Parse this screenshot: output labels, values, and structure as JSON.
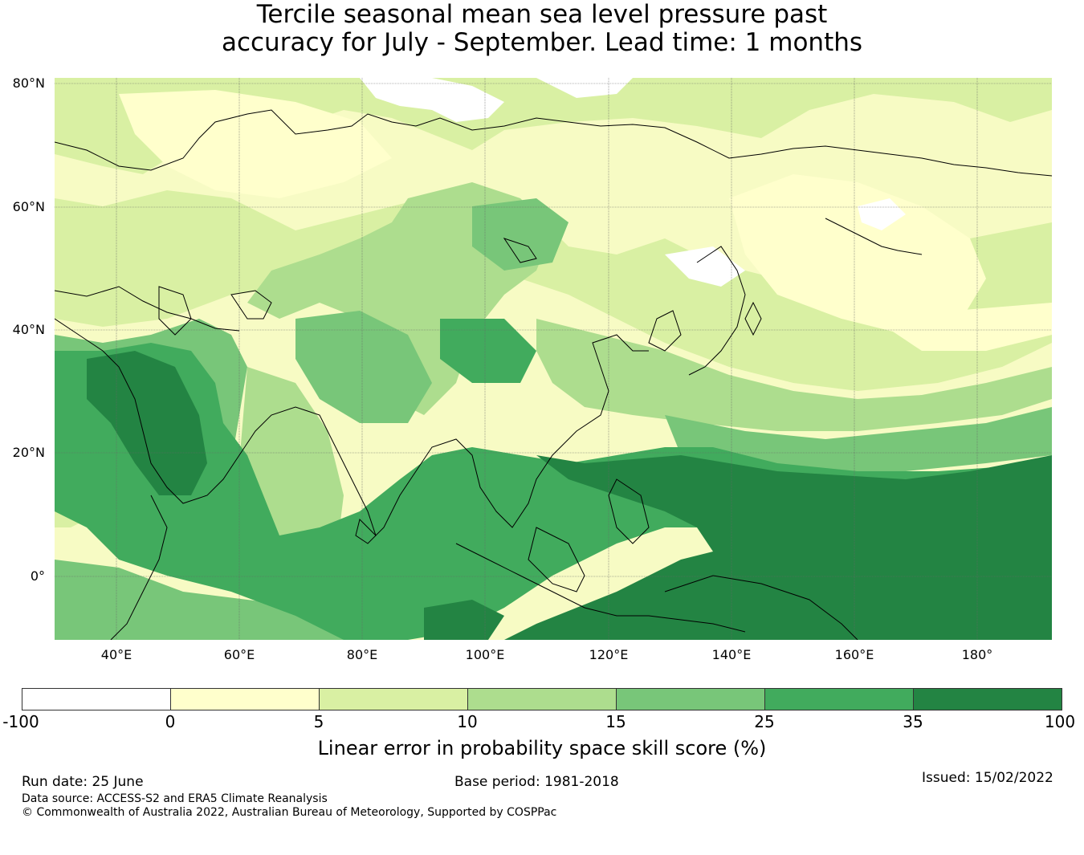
{
  "header": {
    "title_line1": "Tercile seasonal mean sea level pressure past",
    "title_line2": "accuracy for July - September. Lead time: 1 months"
  },
  "map": {
    "lat_ticks": [
      "80°N",
      "60°N",
      "40°N",
      "20°N",
      "0°"
    ],
    "lon_ticks": [
      "40°E",
      "60°E",
      "80°E",
      "100°E",
      "120°E",
      "140°E",
      "160°E",
      "180°"
    ],
    "lat_range": [
      -10,
      81
    ],
    "lon_range": [
      30,
      192
    ],
    "field": "Linear error in probability space skill score (%)"
  },
  "colorbar": {
    "boundaries": [
      "-100",
      "0",
      "5",
      "10",
      "15",
      "25",
      "35",
      "100"
    ],
    "colors": [
      "#ffffff",
      "#ffffcc",
      "#d9f0a3",
      "#addd8e",
      "#78c679",
      "#41ab5d",
      "#238443"
    ],
    "label": "Linear error in probability space skill score (%)"
  },
  "footer": {
    "run_date": "Run date: 25 June",
    "base_period": "Base period: 1981-2018",
    "issued": "Issued: 15/02/2022",
    "data_source": "Data source: ACCESS-S2 and ERA5 Climate Reanalysis",
    "copyright": "© Commonwealth of Australia 2022, Australian Bureau of Meteorology, Supported by COSPPac"
  }
}
